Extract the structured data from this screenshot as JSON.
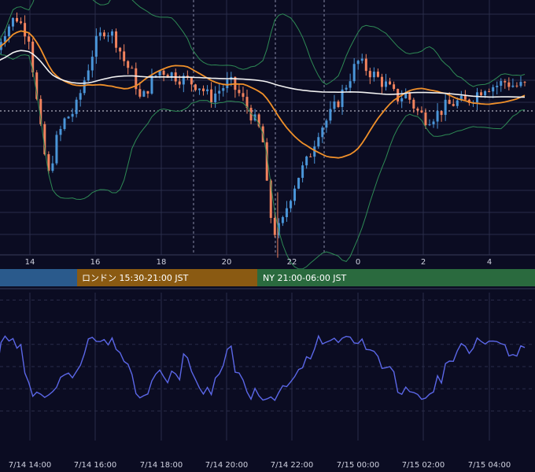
{
  "chart_data": [
    {
      "type": "candlestick",
      "title": "",
      "x_ticks": [
        "14",
        "16",
        "18",
        "20",
        "22",
        "0",
        "2",
        "4"
      ],
      "vertical_dashed_markers": [
        "19:00",
        "21:00",
        "23:00"
      ],
      "grid": true,
      "price_scale_visible": false,
      "candles_ohlc_hourly": [
        {
          "t": "7/14 13:00",
          "o": 0.48,
          "h": 0.62,
          "l": 0.4,
          "c": 0.58
        },
        {
          "t": "7/14 14:00",
          "o": 0.58,
          "h": 0.7,
          "l": 0.2,
          "c": 0.25
        },
        {
          "t": "7/14 15:00",
          "o": 0.25,
          "h": 0.45,
          "l": 0.2,
          "c": 0.42
        },
        {
          "t": "7/14 16:00",
          "o": 0.42,
          "h": 0.6,
          "l": 0.38,
          "c": 0.55
        },
        {
          "t": "7/14 17:00",
          "o": 0.55,
          "h": 0.58,
          "l": 0.42,
          "c": 0.46
        },
        {
          "t": "7/14 18:00",
          "o": 0.46,
          "h": 0.52,
          "l": 0.4,
          "c": 0.48
        },
        {
          "t": "7/14 19:00",
          "o": 0.48,
          "h": 0.52,
          "l": 0.42,
          "c": 0.45
        },
        {
          "t": "7/14 20:00",
          "o": 0.45,
          "h": 0.48,
          "l": 0.36,
          "c": 0.4
        },
        {
          "t": "7/14 21:00",
          "o": 0.4,
          "h": 0.42,
          "l": 0.05,
          "c": 0.1
        },
        {
          "t": "7/14 22:00",
          "o": 0.1,
          "h": 0.3,
          "l": 0.08,
          "c": 0.28
        },
        {
          "t": "7/14 23:00",
          "o": 0.28,
          "h": 0.38,
          "l": 0.26,
          "c": 0.36
        },
        {
          "t": "7/15 00:00",
          "o": 0.36,
          "h": 0.5,
          "l": 0.34,
          "c": 0.48
        },
        {
          "t": "7/15 01:00",
          "o": 0.48,
          "h": 0.5,
          "l": 0.4,
          "c": 0.43
        },
        {
          "t": "7/15 02:00",
          "o": 0.43,
          "h": 0.46,
          "l": 0.36,
          "c": 0.38
        },
        {
          "t": "7/15 03:00",
          "o": 0.38,
          "h": 0.45,
          "l": 0.36,
          "c": 0.42
        },
        {
          "t": "7/15 04:00",
          "o": 0.42,
          "h": 0.46,
          "l": 0.4,
          "c": 0.44
        }
      ],
      "series": [
        {
          "type": "line",
          "role": "long moving average",
          "color": "#f2f2f2"
        },
        {
          "type": "line",
          "role": "short moving average",
          "color": "#f0902a"
        },
        {
          "type": "line",
          "role": "bollinger bands",
          "color": "#2e8a55"
        }
      ],
      "colors": {
        "up": "#4a95d8",
        "down": "#f2835e",
        "background": "#0b0c22",
        "grid": "#2a2d4a"
      }
    },
    {
      "type": "line",
      "title": "",
      "color": "#5b67e8",
      "x_ticks": [
        "7/14 14:00",
        "7/14 16:00",
        "7/14 18:00",
        "7/14 20:00",
        "7/14 22:00",
        "7/15 00:00",
        "7/15 02:00",
        "7/15 04:00"
      ],
      "values": [
        48,
        52,
        66,
        56,
        26,
        24,
        44,
        54,
        62,
        58,
        64,
        60,
        50,
        42,
        52,
        60,
        58,
        56,
        58,
        60,
        56,
        58,
        48,
        40,
        50,
        56,
        50,
        24,
        30,
        46,
        54,
        62,
        66,
        70,
        64,
        60,
        60,
        56,
        46,
        40,
        48,
        56,
        58,
        60,
        58,
        56,
        58,
        64,
        56,
        60
      ],
      "ylim": [
        0,
        100
      ],
      "grid": "dashed"
    }
  ],
  "sessions": [
    {
      "label": "",
      "color": "#2a5a8c"
    },
    {
      "label": "ロンドン 15:30-21:00 JST",
      "color": "#8a5a12"
    },
    {
      "label": "NY 21:00-06:00 JST",
      "color": "#2a6a3e"
    }
  ]
}
